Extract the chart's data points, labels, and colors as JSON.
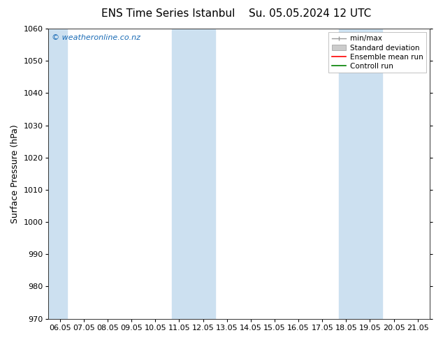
{
  "title1": "ENS Time Series Istanbul",
  "title2": "Su. 05.05.2024 12 UTC",
  "ylabel": "Surface Pressure (hPa)",
  "ylim": [
    970,
    1060
  ],
  "yticks": [
    970,
    980,
    990,
    1000,
    1010,
    1020,
    1030,
    1040,
    1050,
    1060
  ],
  "x_labels": [
    "06.05",
    "07.05",
    "08.05",
    "09.05",
    "10.05",
    "11.05",
    "12.05",
    "13.05",
    "14.05",
    "15.05",
    "16.05",
    "17.05",
    "18.05",
    "19.05",
    "20.05",
    "21.05"
  ],
  "shaded_regions": [
    {
      "xmin": -0.5,
      "xmax": 0.3
    },
    {
      "xmin": 4.7,
      "xmax": 6.5
    },
    {
      "xmin": 11.7,
      "xmax": 13.5
    }
  ],
  "shade_color": "#cce0f0",
  "bg_color": "#ffffff",
  "plot_bg_color": "#ffffff",
  "watermark": "© weatheronline.co.nz",
  "watermark_color": "#1a6bb5",
  "legend_labels": [
    "min/max",
    "Standard deviation",
    "Ensemble mean run",
    "Controll run"
  ],
  "legend_colors_line": [
    "#999999",
    "#bbbbbb",
    "#ff0000",
    "#008000"
  ],
  "border_color": "#333333",
  "title_fontsize": 11,
  "axis_label_fontsize": 9,
  "tick_fontsize": 8,
  "legend_fontsize": 7.5
}
